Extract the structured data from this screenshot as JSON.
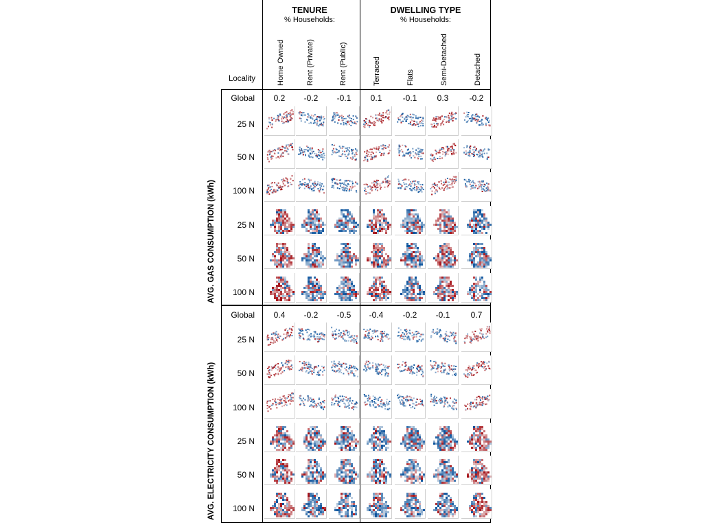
{
  "header": {
    "locality_label": "Locality",
    "groups": [
      {
        "title": "TENURE",
        "subtitle": "% Households:"
      },
      {
        "title": "DWELLING TYPE",
        "subtitle": "% Households:"
      }
    ],
    "columns": [
      "Home Owned",
      "Rent (Private)",
      "Rent (Public)",
      "Terraced",
      "Flats",
      "Semi-Detached",
      "Detached"
    ]
  },
  "sections": [
    {
      "title": "AVG. GAS  CONSUMPTION (kWh)",
      "global_label": "Global",
      "global_values": [
        "0.2",
        "-0.2",
        "-0.1",
        "0.1",
        "-0.1",
        "0.3",
        "-0.2"
      ],
      "scatter_row_labels": [
        "25 N",
        "50 N",
        "100 N"
      ],
      "map_row_labels": [
        "25 N",
        "50 N",
        "100 N"
      ]
    },
    {
      "title": "AVG. ELECTRICITY CONSUMPTION (kWh)",
      "global_label": "Global",
      "global_values": [
        "0.4",
        "-0.2",
        "-0.5",
        "-0.4",
        "-0.2",
        "-0.1",
        "0.7"
      ],
      "scatter_row_labels": [
        "25 N",
        "50 N",
        "100 N"
      ],
      "map_row_labels": [
        "25 N",
        "50 N",
        "100 N"
      ]
    }
  ],
  "colors": {
    "positive": "#a50f15",
    "negative": "#08519c",
    "neutral": "#f2f2f2"
  }
}
